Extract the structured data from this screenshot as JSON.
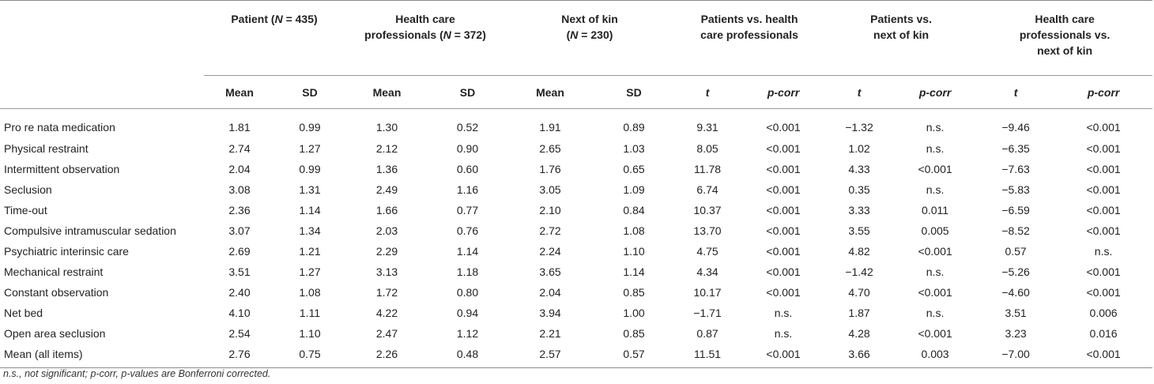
{
  "header": {
    "groups": [
      {
        "pre": "Patient (",
        "n_label": "N",
        "post": " = 435)"
      },
      {
        "line1": "Health care",
        "pre": "professionals (",
        "n_label": "N",
        "post": " = 372)"
      },
      {
        "line1": "Next of kin",
        "pre": "(",
        "n_label": "N",
        "post": " = 230)"
      },
      {
        "line1": "Patients vs. health",
        "line2": "care professionals"
      },
      {
        "line1": "Patients vs.",
        "line2": "next of kin"
      },
      {
        "line1": "Health care",
        "line2": "professionals vs.",
        "line3": "next of kin"
      }
    ],
    "sub": [
      "Mean",
      "SD",
      "Mean",
      "SD",
      "Mean",
      "SD",
      "t",
      "p-corr",
      "t",
      "p-corr",
      "t",
      "p-corr"
    ]
  },
  "rows": [
    {
      "label": "Pro re nata medication",
      "cells": [
        "1.81",
        "0.99",
        "1.30",
        "0.52",
        "1.91",
        "0.89",
        "9.31",
        "<0.001",
        "−1.32",
        "n.s.",
        "−9.46",
        "<0.001"
      ]
    },
    {
      "label": "Physical restraint",
      "cells": [
        "2.74",
        "1.27",
        "2.12",
        "0.90",
        "2.65",
        "1.03",
        "8.05",
        "<0.001",
        "1.02",
        "n.s.",
        "−6.35",
        "<0.001"
      ]
    },
    {
      "label": "Intermittent observation",
      "cells": [
        "2.04",
        "0.99",
        "1.36",
        "0.60",
        "1.76",
        "0.65",
        "11.78",
        "<0.001",
        "4.33",
        "<0.001",
        "−7.63",
        "<0.001"
      ]
    },
    {
      "label": "Seclusion",
      "cells": [
        "3.08",
        "1.31",
        "2.49",
        "1.16",
        "3.05",
        "1.09",
        "6.74",
        "<0.001",
        "0.35",
        "n.s.",
        "−5.83",
        "<0.001"
      ]
    },
    {
      "label": "Time-out",
      "cells": [
        "2.36",
        "1.14",
        "1.66",
        "0.77",
        "2.10",
        "0.84",
        "10.37",
        "<0.001",
        "3.33",
        "0.011",
        "−6.59",
        "<0.001"
      ]
    },
    {
      "label": "Compulsive intramuscular sedation",
      "cells": [
        "3.07",
        "1.34",
        "2.03",
        "0.76",
        "2.72",
        "1.08",
        "13.70",
        "<0.001",
        "3.55",
        "0.005",
        "−8.52",
        "<0.001"
      ]
    },
    {
      "label": "Psychiatric interinsic care",
      "cells": [
        "2.69",
        "1.21",
        "2.29",
        "1.14",
        "2.24",
        "1.10",
        "4.75",
        "<0.001",
        "4.82",
        "<0.001",
        "0.57",
        "n.s."
      ]
    },
    {
      "label": "Mechanical restraint",
      "cells": [
        "3.51",
        "1.27",
        "3.13",
        "1.18",
        "3.65",
        "1.14",
        "4.34",
        "<0.001",
        "−1.42",
        "n.s.",
        "−5.26",
        "<0.001"
      ]
    },
    {
      "label": "Constant observation",
      "cells": [
        "2.40",
        "1.08",
        "1.72",
        "0.80",
        "2.04",
        "0.85",
        "10.17",
        "<0.001",
        "4.70",
        "<0.001",
        "−4.60",
        "<0.001"
      ]
    },
    {
      "label": "Net bed",
      "cells": [
        "4.10",
        "1.11",
        "4.22",
        "0.94",
        "3.94",
        "1.00",
        "−1.71",
        "n.s.",
        "1.87",
        "n.s.",
        "3.51",
        "0.006"
      ]
    },
    {
      "label": "Open area seclusion",
      "cells": [
        "2.54",
        "1.10",
        "2.47",
        "1.12",
        "2.21",
        "0.85",
        "0.87",
        "n.s.",
        "4.28",
        "<0.001",
        "3.23",
        "0.016"
      ]
    },
    {
      "label": "Mean (all items)",
      "cells": [
        "2.76",
        "0.75",
        "2.26",
        "0.48",
        "2.57",
        "0.57",
        "11.51",
        "<0.001",
        "3.66",
        "0.003",
        "−7.00",
        "<0.001"
      ]
    }
  ],
  "footnote": "n.s., not significant; p-corr, p-values are Bonferroni corrected."
}
